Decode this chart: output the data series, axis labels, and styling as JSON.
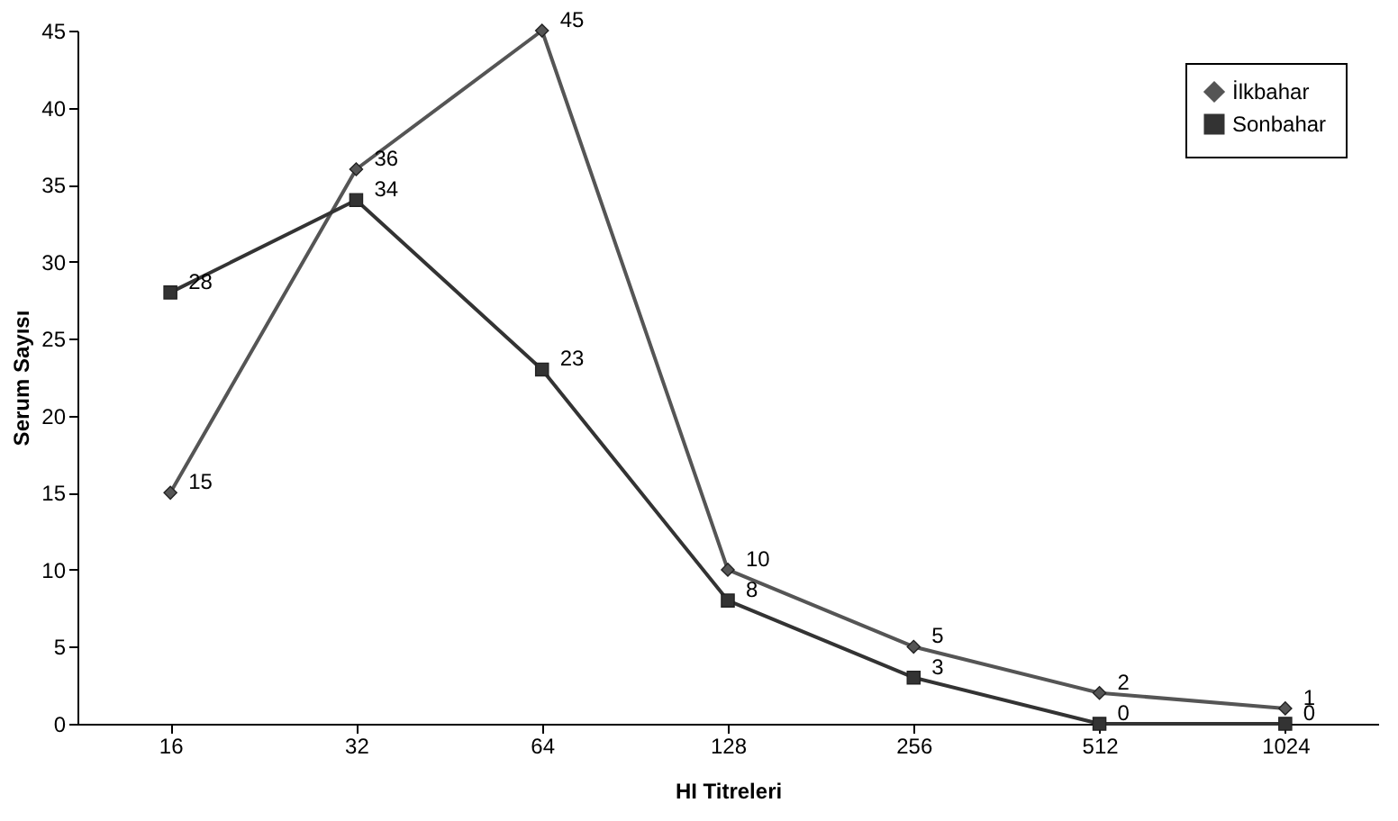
{
  "chart_data": {
    "type": "line",
    "xlabel": "HI Titreleri",
    "ylabel": "Serum Sayısı",
    "categories": [
      "16",
      "32",
      "64",
      "128",
      "256",
      "512",
      "1024"
    ],
    "series": [
      {
        "name": "İlkbahar",
        "color": "#555555",
        "marker": "diamond",
        "values": [
          15,
          36,
          45,
          10,
          5,
          2,
          1
        ]
      },
      {
        "name": "Sonbahar",
        "color": "#333333",
        "marker": "square",
        "values": [
          28,
          34,
          23,
          8,
          3,
          0,
          0
        ]
      }
    ],
    "ylim": [
      0,
      45
    ],
    "yticks": [
      0,
      5,
      10,
      15,
      20,
      25,
      30,
      35,
      40,
      45
    ],
    "grid": false,
    "legend": "top right",
    "data_labels": true,
    "line_style": "solid"
  }
}
